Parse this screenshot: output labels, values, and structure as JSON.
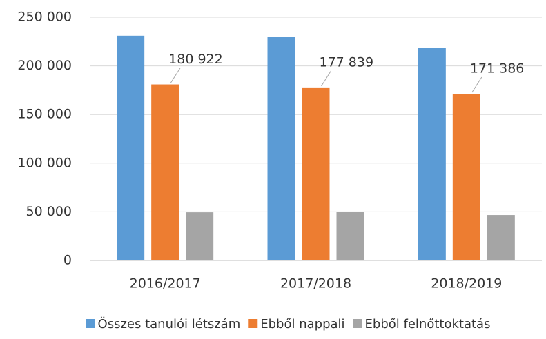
{
  "chart_data": {
    "type": "bar",
    "categories": [
      "2016/2017",
      "2017/2018",
      "2018/2019"
    ],
    "series": [
      {
        "name": "Összes tanulói létszám",
        "color": "#5b9bd5",
        "values": [
          231000,
          229500,
          218800
        ]
      },
      {
        "name": "Ebből nappali",
        "color": "#ed7d31",
        "values": [
          180922,
          177839,
          171386
        ],
        "value_labels": [
          "180 922",
          "177 839",
          "171 386"
        ]
      },
      {
        "name": "Ebből felnőttoktatás",
        "color": "#a5a5a5",
        "values": [
          49500,
          50000,
          46700
        ]
      }
    ],
    "ylim": [
      0,
      250000
    ],
    "yticks": [
      0,
      {
        "value": 50000,
        "label": "50 000"
      },
      {
        "value": 100000,
        "label": "100 000"
      },
      {
        "value": 150000,
        "label": "150 000"
      },
      {
        "value": 200000,
        "label": "200 000"
      },
      {
        "value": 250000,
        "label": "250 000"
      }
    ],
    "grid": true,
    "legend": "bottom"
  }
}
